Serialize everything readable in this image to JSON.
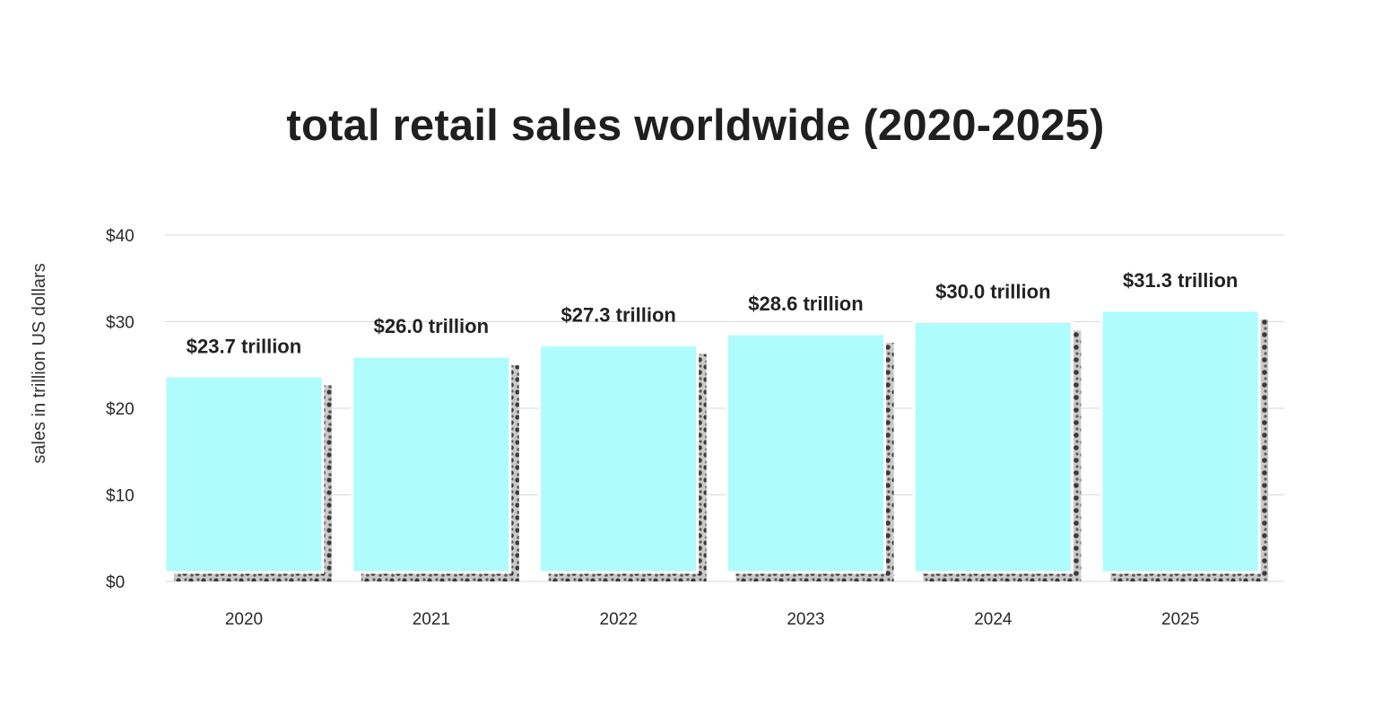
{
  "chart_data": {
    "type": "bar",
    "title": "total retail sales worldwide (2020-2025)",
    "xlabel": "",
    "ylabel": "sales in trillion US dollars",
    "categories": [
      "2020",
      "2021",
      "2022",
      "2023",
      "2024",
      "2025"
    ],
    "values": [
      23.7,
      26.0,
      27.3,
      28.6,
      30.0,
      31.3
    ],
    "data_labels": [
      "$23.7 trillion",
      "$26.0 trillion",
      "$27.3 trillion",
      "$28.6 trillion",
      "$30.0 trillion",
      "$31.3 trillion"
    ],
    "y_ticks": [
      {
        "value": 0,
        "label": "$0"
      },
      {
        "value": 10,
        "label": "$10"
      },
      {
        "value": 20,
        "label": "$20"
      },
      {
        "value": 30,
        "label": "$30"
      },
      {
        "value": 40,
        "label": "$40"
      }
    ],
    "ylim": [
      0,
      40
    ],
    "grid": true,
    "legend": "none",
    "colors": {
      "bar_fill": "#aefcfb",
      "bar_shadow": "#4a4a4a",
      "grid": "#d9d9d9",
      "text": "#222222"
    }
  }
}
